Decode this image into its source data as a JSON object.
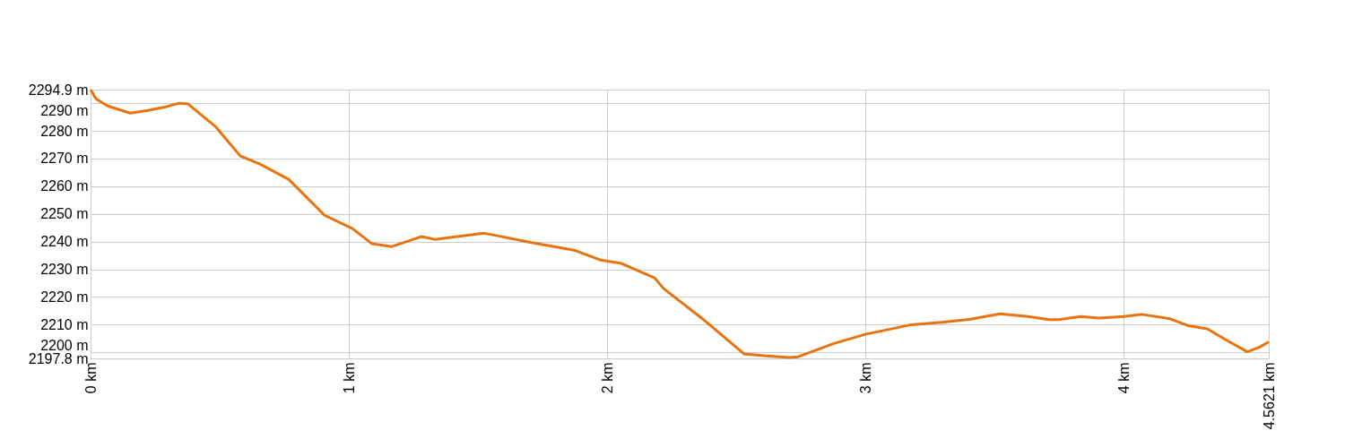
{
  "chart_data": {
    "type": "line",
    "x": [
      0,
      0.021,
      0.066,
      0.153,
      0.222,
      0.292,
      0.344,
      0.378,
      0.483,
      0.58,
      0.656,
      0.767,
      0.906,
      1.014,
      1.09,
      1.167,
      1.281,
      1.333,
      1.524,
      1.576,
      1.698,
      1.872,
      1.976,
      2.056,
      2.184,
      2.219,
      2.375,
      2.531,
      2.618,
      2.705,
      2.74,
      2.878,
      3.0,
      3.174,
      3.294,
      3.402,
      3.522,
      3.629,
      3.713,
      3.749,
      3.833,
      3.905,
      4.0,
      4.072,
      4.18,
      4.252,
      4.324,
      4.396,
      4.479,
      4.527,
      4.5621
    ],
    "series": [
      {
        "color": "#e8730c",
        "values": [
          2294.9,
          2291.6,
          2289,
          2286.4,
          2287.4,
          2288.7,
          2290,
          2289.7,
          2281.6,
          2270.9,
          2268,
          2262.5,
          2249.5,
          2244.7,
          2239.2,
          2238.2,
          2241.8,
          2240.8,
          2243,
          2242.1,
          2239.8,
          2236.9,
          2233.3,
          2232.1,
          2226.9,
          2223,
          2211.7,
          2199.4,
          2198.7,
          2198.1,
          2198.4,
          2203.2,
          2206.5,
          2209.9,
          2210.8,
          2211.9,
          2213.9,
          2212.9,
          2211.8,
          2211.8,
          2212.9,
          2212.4,
          2212.9,
          2213.7,
          2212.1,
          2209.6,
          2208.5,
          2204.5,
          2200.2,
          2201.9,
          2203.8
        ]
      }
    ],
    "xlim": [
      0,
      4.5621
    ],
    "xticks": [
      {
        "value": 0,
        "label": "0 km"
      },
      {
        "value": 1,
        "label": "1 km"
      },
      {
        "value": 2,
        "label": "2 km"
      },
      {
        "value": 3,
        "label": "3 km"
      },
      {
        "value": 4,
        "label": "4 km"
      },
      {
        "value": 4.5621,
        "label": "4.5621 km"
      }
    ],
    "ylim": [
      2197.8,
      2294.9
    ],
    "yticks": [
      {
        "value": 2197.8,
        "label": "2197.8 m"
      },
      {
        "value": 2200,
        "label": "2200 m"
      },
      {
        "value": 2210,
        "label": "2210 m"
      },
      {
        "value": 2220,
        "label": "2220 m"
      },
      {
        "value": 2230,
        "label": "2230 m"
      },
      {
        "value": 2240,
        "label": "2240 m"
      },
      {
        "value": 2250,
        "label": "2250 m"
      },
      {
        "value": 2260,
        "label": "2260 m"
      },
      {
        "value": 2270,
        "label": "2270 m"
      },
      {
        "value": 2280,
        "label": "2280 m"
      },
      {
        "value": 2290,
        "label": "2290 m"
      },
      {
        "value": 2294.9,
        "label": "2294.9 m"
      }
    ],
    "grid": true
  }
}
